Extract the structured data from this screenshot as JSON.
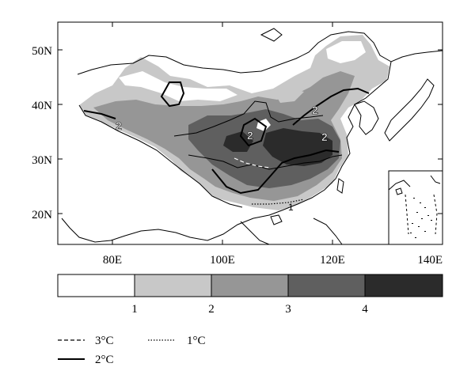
{
  "map": {
    "region": "China",
    "lat_ticks": [
      "20N",
      "30N",
      "40N",
      "50N"
    ],
    "lon_ticks": [
      "80E",
      "100E",
      "120E",
      "140E"
    ],
    "extent": {
      "lon_min": 70,
      "lon_max": 140,
      "lat_min": 15,
      "lat_max": 55
    },
    "contour_labels": [
      "2",
      "2",
      "2",
      "2",
      "1"
    ],
    "inset": "South China Sea islands"
  },
  "colorbar": {
    "colors": [
      "#ffffff",
      "#c8c8c8",
      "#969696",
      "#5f5f5f",
      "#2b2b2b"
    ],
    "labels": [
      "1",
      "2",
      "3",
      "4"
    ]
  },
  "line_legend": {
    "dashed": "3°C",
    "solid": "2°C",
    "dotted": "1°C"
  }
}
